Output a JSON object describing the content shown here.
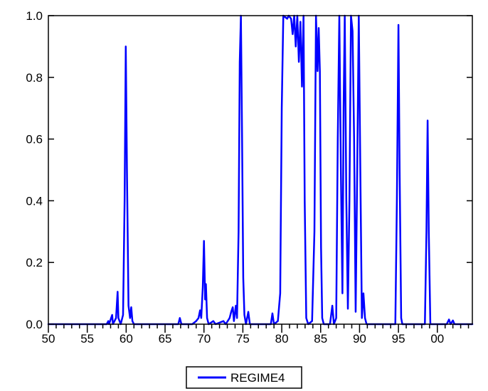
{
  "chart_data": {
    "type": "line",
    "title": "",
    "xlabel": "",
    "ylabel": "",
    "xlim": [
      1950,
      2004.5
    ],
    "ylim": [
      0,
      1
    ],
    "x_tick_values": [
      1950,
      1955,
      1960,
      1965,
      1970,
      1975,
      1980,
      1985,
      1990,
      1995,
      2000
    ],
    "x_tick_labels": [
      "50",
      "55",
      "60",
      "65",
      "70",
      "75",
      "80",
      "85",
      "90",
      "95",
      "00"
    ],
    "y_ticks": [
      0.0,
      0.2,
      0.4,
      0.6,
      0.8,
      1.0
    ],
    "y_tick_labels": [
      "0.0",
      "0.2",
      "0.4",
      "0.6",
      "0.8",
      "1.0"
    ],
    "grid": false,
    "legend": {
      "position": "bottom-center"
    },
    "series": [
      {
        "name": "REGIME4",
        "color": "#0000ff",
        "points": [
          [
            1950.0,
            0.0
          ],
          [
            1957.5,
            0.0
          ],
          [
            1957.7,
            0.01
          ],
          [
            1957.8,
            0.0
          ],
          [
            1958.2,
            0.03
          ],
          [
            1958.3,
            0.0
          ],
          [
            1958.7,
            0.02
          ],
          [
            1958.9,
            0.105
          ],
          [
            1959.0,
            0.02
          ],
          [
            1959.3,
            0.0
          ],
          [
            1959.6,
            0.03
          ],
          [
            1959.8,
            0.4
          ],
          [
            1959.95,
            0.9
          ],
          [
            1960.1,
            0.5
          ],
          [
            1960.3,
            0.06
          ],
          [
            1960.5,
            0.02
          ],
          [
            1960.65,
            0.055
          ],
          [
            1960.8,
            0.01
          ],
          [
            1961.0,
            0.0
          ],
          [
            1966.7,
            0.0
          ],
          [
            1966.9,
            0.02
          ],
          [
            1967.1,
            0.0
          ],
          [
            1968.5,
            0.0
          ],
          [
            1969.0,
            0.01
          ],
          [
            1969.3,
            0.02
          ],
          [
            1969.5,
            0.045
          ],
          [
            1969.65,
            0.02
          ],
          [
            1969.85,
            0.12
          ],
          [
            1970.0,
            0.27
          ],
          [
            1970.15,
            0.08
          ],
          [
            1970.25,
            0.13
          ],
          [
            1970.4,
            0.02
          ],
          [
            1970.6,
            0.0
          ],
          [
            1971.2,
            0.01
          ],
          [
            1971.5,
            0.0
          ],
          [
            1972.5,
            0.01
          ],
          [
            1972.8,
            0.0
          ],
          [
            1973.3,
            0.02
          ],
          [
            1973.5,
            0.04
          ],
          [
            1973.7,
            0.055
          ],
          [
            1973.85,
            0.01
          ],
          [
            1974.1,
            0.06
          ],
          [
            1974.25,
            0.02
          ],
          [
            1974.45,
            0.3
          ],
          [
            1974.6,
            0.85
          ],
          [
            1974.75,
            1.0
          ],
          [
            1974.9,
            0.6
          ],
          [
            1975.05,
            0.15
          ],
          [
            1975.2,
            0.03
          ],
          [
            1975.4,
            0.0
          ],
          [
            1975.7,
            0.04
          ],
          [
            1975.9,
            0.0
          ],
          [
            1978.6,
            0.0
          ],
          [
            1978.8,
            0.035
          ],
          [
            1979.0,
            0.0
          ],
          [
            1979.5,
            0.01
          ],
          [
            1979.8,
            0.1
          ],
          [
            1980.0,
            0.7
          ],
          [
            1980.2,
            1.0
          ],
          [
            1980.7,
            0.99
          ],
          [
            1980.9,
            1.0
          ],
          [
            1981.2,
            0.99
          ],
          [
            1981.4,
            0.94
          ],
          [
            1981.6,
            1.0
          ],
          [
            1981.8,
            0.9
          ],
          [
            1982.0,
            1.0
          ],
          [
            1982.2,
            0.85
          ],
          [
            1982.4,
            0.98
          ],
          [
            1982.6,
            0.77
          ],
          [
            1982.8,
            1.0
          ],
          [
            1982.95,
            0.4
          ],
          [
            1983.15,
            0.02
          ],
          [
            1983.4,
            0.0
          ],
          [
            1983.9,
            0.01
          ],
          [
            1984.2,
            0.3
          ],
          [
            1984.4,
            1.0
          ],
          [
            1984.6,
            0.82
          ],
          [
            1984.75,
            0.96
          ],
          [
            1984.9,
            0.82
          ],
          [
            1985.05,
            0.25
          ],
          [
            1985.2,
            0.02
          ],
          [
            1985.4,
            0.0
          ],
          [
            1986.2,
            0.0
          ],
          [
            1986.5,
            0.06
          ],
          [
            1986.7,
            0.0
          ],
          [
            1987.0,
            0.02
          ],
          [
            1987.2,
            0.6
          ],
          [
            1987.4,
            1.0
          ],
          [
            1987.6,
            0.5
          ],
          [
            1987.8,
            0.1
          ],
          [
            1987.95,
            0.7
          ],
          [
            1988.1,
            1.0
          ],
          [
            1988.3,
            0.4
          ],
          [
            1988.5,
            0.05
          ],
          [
            1988.7,
            0.4
          ],
          [
            1988.9,
            1.0
          ],
          [
            1989.1,
            0.95
          ],
          [
            1989.3,
            0.6
          ],
          [
            1989.5,
            0.04
          ],
          [
            1989.7,
            0.5
          ],
          [
            1989.9,
            1.0
          ],
          [
            1990.1,
            0.5
          ],
          [
            1990.3,
            0.02
          ],
          [
            1990.5,
            0.1
          ],
          [
            1990.7,
            0.02
          ],
          [
            1990.9,
            0.0
          ],
          [
            1994.6,
            0.0
          ],
          [
            1994.8,
            0.4
          ],
          [
            1995.0,
            0.97
          ],
          [
            1995.15,
            0.5
          ],
          [
            1995.35,
            0.02
          ],
          [
            1995.5,
            0.0
          ],
          [
            1998.4,
            0.0
          ],
          [
            1998.6,
            0.3
          ],
          [
            1998.75,
            0.66
          ],
          [
            1998.9,
            0.3
          ],
          [
            1999.1,
            0.0
          ],
          [
            2001.2,
            0.0
          ],
          [
            2001.5,
            0.015
          ],
          [
            2001.7,
            0.0
          ],
          [
            2002.0,
            0.012
          ],
          [
            2002.2,
            0.0
          ],
          [
            2004.5,
            0.0
          ]
        ]
      }
    ]
  }
}
